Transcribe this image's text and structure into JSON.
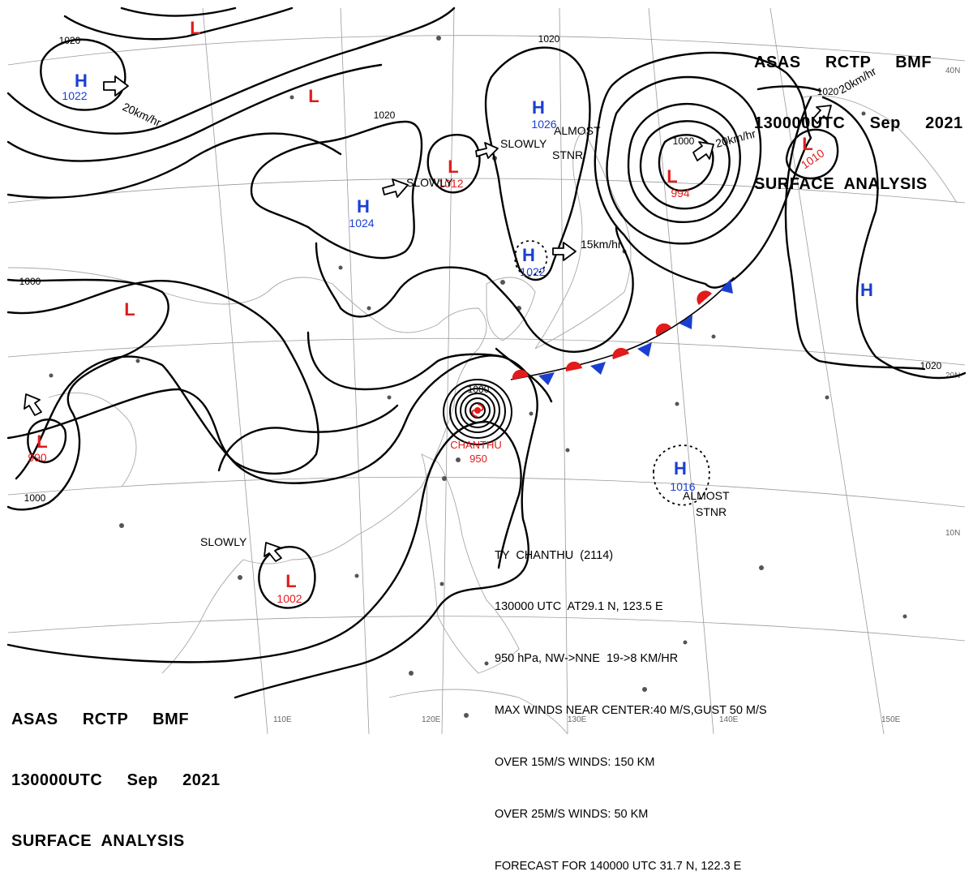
{
  "header": {
    "line1": "ASAS     RCTP     BMF",
    "line2": "130000UTC     Sep     2021",
    "line3": "SURFACE  ANALYSIS"
  },
  "pressure_centers": [
    {
      "type": "H",
      "value": "1022"
    },
    {
      "type": "H",
      "value": "1024"
    },
    {
      "type": "H",
      "value": "1026"
    },
    {
      "type": "H",
      "value": "1022"
    },
    {
      "type": "H",
      "value": "1016"
    },
    {
      "type": "H",
      "value": ""
    },
    {
      "type": "L",
      "value": "1012"
    },
    {
      "type": "L",
      "value": "994"
    },
    {
      "type": "L",
      "value": "1010"
    },
    {
      "type": "L",
      "value": "990"
    },
    {
      "type": "L",
      "value": "1002"
    },
    {
      "type": "L",
      "value": ""
    },
    {
      "type": "L",
      "value": ""
    },
    {
      "type": "L",
      "value": ""
    }
  ],
  "isobar_labels": [
    "1020",
    "1020",
    "1020",
    "1000",
    "1000",
    "1020",
    "1000",
    "1020",
    "1000"
  ],
  "motion_labels": [
    "20km/hr",
    "SLOWLY",
    "SLOWLY",
    "ALMOST",
    "STNR",
    "15km/hr",
    "20km/hr",
    "20km/hr",
    "SLOWLY",
    "ALMOST",
    "STNR"
  ],
  "typhoon": {
    "name": "CHANTHU",
    "pressure": "950"
  },
  "lat_labels": [
    "40N",
    "20N",
    "10N"
  ],
  "lon_labels": [
    "110E",
    "120E",
    "130E",
    "140E",
    "150E"
  ],
  "typhoon_bulletin": [
    "TY  CHANTHU  (2114)",
    "130000 UTC  AT29.1 N, 123.5 E",
    "950 hPa, NW->NNE  19->8 KM/HR",
    "MAX WINDS NEAR CENTER:40 M/S,GUST 50 M/S",
    "OVER 15M/S WINDS: 150 KM",
    "OVER 25M/S WINDS: 50 KM",
    "FORECAST FOR 140000 UTC 31.7 N, 122.3 E"
  ],
  "colors": {
    "high": "#1a3fd0",
    "low": "#e21b1b",
    "front_warm": "#e21b1b",
    "front_cold": "#1a3fd0",
    "coast": "#aaaaaa",
    "grid": "#999999"
  }
}
